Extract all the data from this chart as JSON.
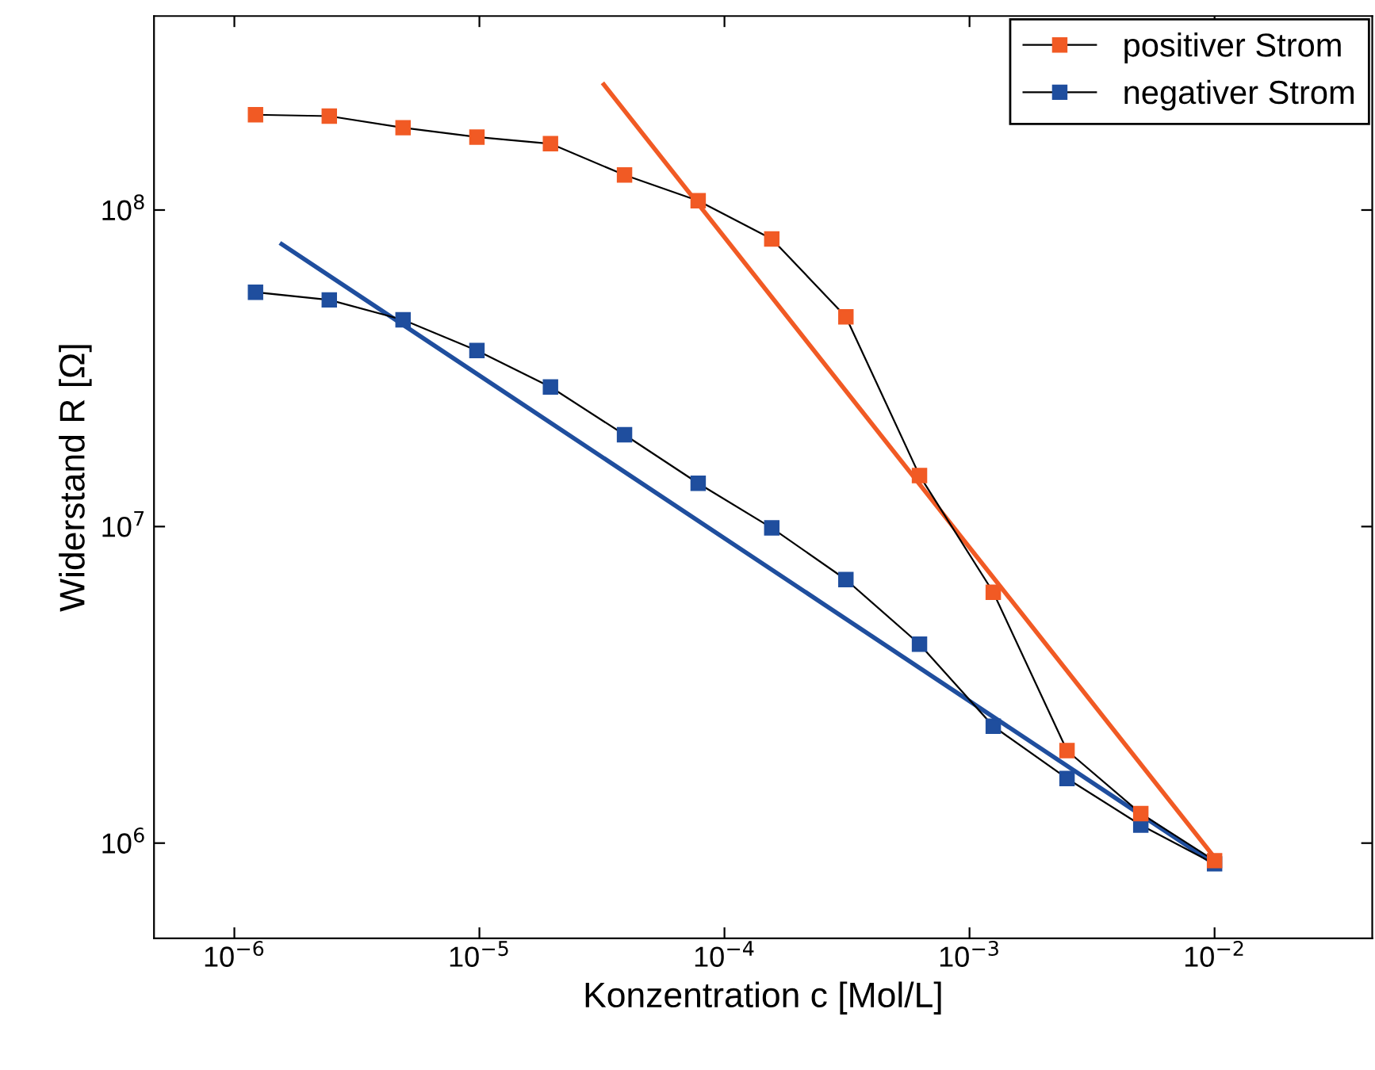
{
  "chart_data": {
    "type": "line",
    "xlabel": "Konzentration c [Mol/L]",
    "ylabel": "Widerstand R [Ω]",
    "log": "xy",
    "xlim": [
      4.7e-07,
      0.044
    ],
    "ylim": [
      500000.0,
      410000000.0
    ],
    "xticks": [
      {
        "value": 1e-06,
        "label": "10$^{−6}$"
      },
      {
        "value": 1e-05,
        "label": "10$^{−5}$"
      },
      {
        "value": 0.0001,
        "label": "10$^{−4}$"
      },
      {
        "value": 0.001,
        "label": "10$^{−3}$"
      },
      {
        "value": 0.01,
        "label": "10$^{−2}$"
      }
    ],
    "yticks": [
      {
        "value": 1000000.0,
        "label": "10$^{6}$"
      },
      {
        "value": 10000000.0,
        "label": "10$^{7}$"
      },
      {
        "value": 100000000.0,
        "label": "10$^{8}$"
      }
    ],
    "x": [
      1.22e-06,
      2.44e-06,
      4.88e-06,
      9.77e-06,
      1.95e-05,
      3.91e-05,
      7.81e-05,
      0.000156,
      0.000313,
      0.000625,
      0.00125,
      0.0025,
      0.005,
      0.01
    ],
    "marker": "square",
    "legend": "top right",
    "grid": false,
    "series": [
      {
        "name": "positiver Strom",
        "color": "#f15a24",
        "values": [
          200000000.0,
          198000000.0,
          182000000.0,
          170000000.0,
          162000000.0,
          129000000.0,
          107000000.0,
          81000000.0,
          46000000.0,
          14500000.0,
          6200000.0,
          1960000.0,
          1240000.0,
          880000.0
        ]
      },
      {
        "name": "negativer Strom",
        "color": "#1f4e9e",
        "values": [
          55000000.0,
          52000000.0,
          45000000.0,
          36000000.0,
          27600000.0,
          19500000.0,
          13700000.0,
          9900000.0,
          6800000.0,
          4250000.0,
          2340000.0,
          1600000.0,
          1140000.0,
          860000.0
        ]
      },
      {
        "color": "#f15a24",
        "x": [
          3.22e-05,
          0.01
        ],
        "values": [
          249000000.0,
          900000.0
        ],
        "marker": "none"
      },
      {
        "color": "#1f4e9e",
        "x": [
          1.56e-06,
          0.01
        ],
        "values": [
          78000000.0,
          860000.0
        ],
        "marker": "none"
      }
    ]
  }
}
